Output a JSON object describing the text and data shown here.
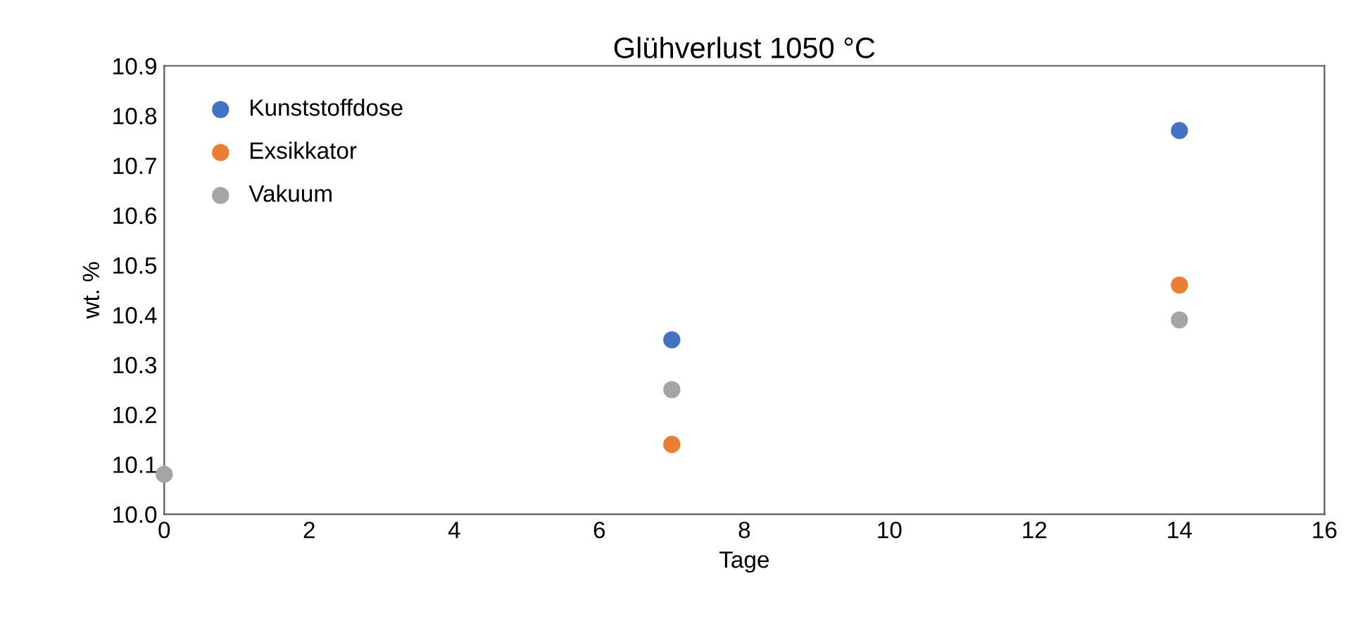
{
  "chart_data": {
    "type": "scatter",
    "title": "Glühverlust 1050 °C",
    "xlabel": "Tage",
    "ylabel": "wt. %",
    "x": [
      0,
      7,
      14
    ],
    "series": [
      {
        "name": "Kunststoffdose",
        "color": "#4472c4",
        "values": [
          null,
          10.35,
          10.77
        ]
      },
      {
        "name": "Exsikkator",
        "color": "#ed7d31",
        "values": [
          null,
          10.14,
          10.46
        ]
      },
      {
        "name": "Vakuum",
        "color": "#a5a5a5",
        "values": [
          10.08,
          10.25,
          10.39
        ]
      }
    ],
    "xlim": [
      0,
      16
    ],
    "xticks": [
      0,
      2,
      4,
      6,
      8,
      10,
      12,
      14,
      16
    ],
    "ylim": [
      10,
      10.9
    ],
    "yticks": [
      {
        "value": 10,
        "label": "10.0"
      },
      10.1,
      10.2,
      10.3,
      10.4,
      10.5,
      10.6,
      10.7,
      10.8,
      10.9
    ],
    "grid": false,
    "legend": "top left",
    "marker": "circle"
  }
}
